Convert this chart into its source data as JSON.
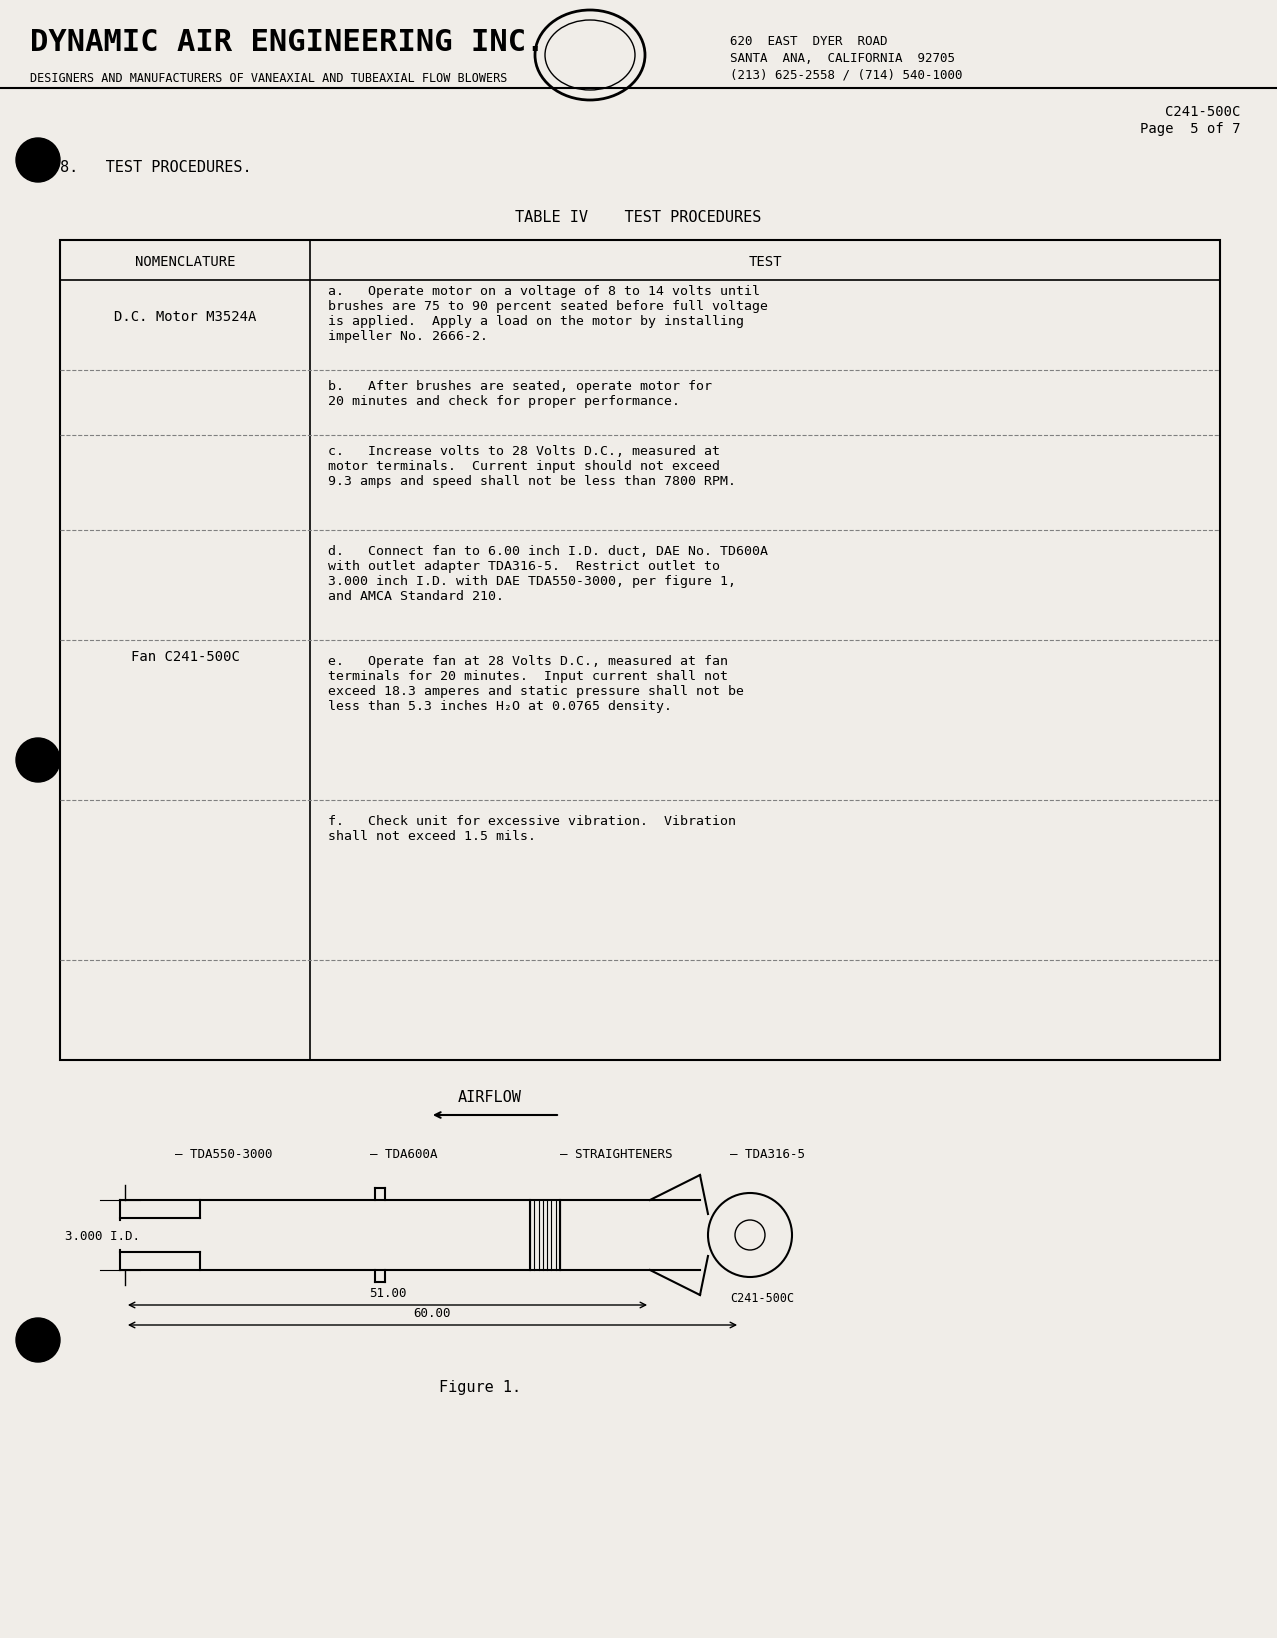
{
  "bg_color": "#f0ede8",
  "title_company": "DYNAMIC AIR ENGINEERING INC.",
  "subtitle_company": "DESIGNERS AND MANUFACTURERS OF VANEAXIAL AND TUBEAXIAL FLOW BLOWERS",
  "address_line1": "620  EAST  DYER  ROAD",
  "address_line2": "SANTA  ANA,  CALIFORNIA  92705",
  "address_line3": "(213) 625-2558 / (714) 540-1000",
  "doc_number": "C241-500C",
  "page_info": "Page  5 of 7",
  "section_header": "8.   TEST PROCEDURES.",
  "table_title": "TABLE IV    TEST PROCEDURES",
  "col_header_1": "NOMENCLATURE",
  "col_header_2": "TEST",
  "nom_1": "D.C. Motor M3524A",
  "test_a": "a.   Operate motor on a voltage of 8 to 14 volts until\nbrushes are 75 to 90 percent seated before full voltage\nis applied.  Apply a load on the motor by installing\nimpeller No. 2666-2.",
  "test_b": "b.   After brushes are seated, operate motor for\n20 minutes and check for proper performance.",
  "test_c": "c.   Increase volts to 28 Volts D.C., measured at\nmotor terminals.  Current input should not exceed\n9.3 amps and speed shall not be less than 7800 RPM.",
  "nom_2": "Fan C241-500C",
  "test_d": "d.   Connect fan to 6.00 inch I.D. duct, DAE No. TD600A\nwith outlet adapter TDA316-5.  Restrict outlet to\n3.000 inch I.D. with DAE TDA550-3000, per figure 1,\nand AMCA Standard 210.",
  "test_e": "e.   Operate fan at 28 Volts D.C., measured at fan\nterminals for 20 minutes.  Input current shall not\nexceed 18.3 amperes and static pressure shall not be\nless than 5.3 inches H₂O at 0.0765 density.",
  "test_f": "f.   Check unit for excessive vibration.  Vibration\nshall not exceed 1.5 mils.",
  "airflow_label": "AIRFLOW",
  "label_tda550": "TDA550-3000",
  "label_tda600a": "TDA600A",
  "label_straighteners": "STRAIGHTENERS",
  "label_tda316": "TDA316-5",
  "dim_3000_id": "3.000 I.D.",
  "dim_51": "51.00",
  "dim_60": "60.00",
  "fig_label": "Figure 1.",
  "part_label": "C241-500C"
}
